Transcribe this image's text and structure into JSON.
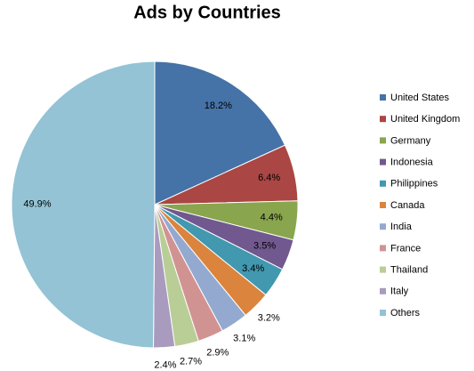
{
  "chart_data": {
    "type": "pie",
    "title": "Ads by Countries",
    "categories": [
      "United States",
      "United Kingdom",
      "Germany",
      "Indonesia",
      "Philippines",
      "Canada",
      "India",
      "France",
      "Thailand",
      "Italy",
      "Others"
    ],
    "values": [
      18.2,
      6.4,
      4.4,
      3.5,
      3.4,
      3.2,
      3.1,
      2.9,
      2.7,
      2.4,
      49.9
    ],
    "value_labels": [
      "18.2%",
      "6.4%",
      "4.4%",
      "3.5%",
      "3.4%",
      "3.2%",
      "3.1%",
      "2.9%",
      "2.7%",
      "2.4%",
      "49.9%"
    ],
    "colors": [
      "#4572a7",
      "#aa4643",
      "#89a54e",
      "#71588f",
      "#4198af",
      "#db843d",
      "#93a9cf",
      "#d19392",
      "#b9cd96",
      "#a99bbd",
      "#93c3d5"
    ],
    "legend": "right"
  }
}
